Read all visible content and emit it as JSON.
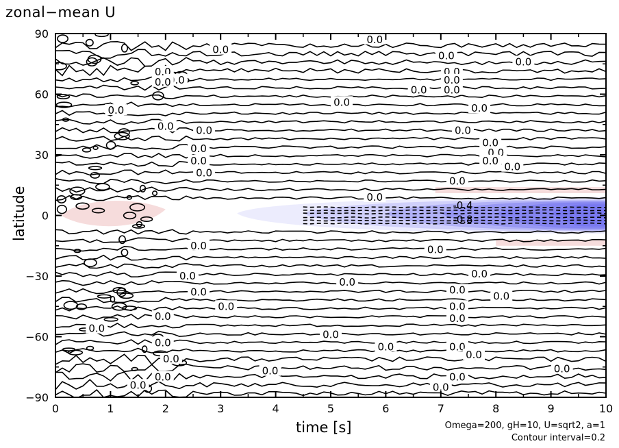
{
  "chart_data": {
    "type": "contour",
    "title": "zonal−mean U",
    "xlabel": "time [s]",
    "ylabel": "latitude",
    "xlim": [
      0,
      10
    ],
    "ylim": [
      -90,
      90
    ],
    "x_ticks": [
      0,
      1,
      2,
      3,
      4,
      5,
      6,
      7,
      8,
      9,
      10
    ],
    "y_ticks": [
      90,
      60,
      30,
      0,
      -30,
      -60,
      -90
    ],
    "y_tick_labels": [
      "90",
      "60",
      "30",
      "0",
      "−30",
      "−60",
      "−90"
    ],
    "contour_interval": 0.2,
    "contour_labels": [
      "0.0",
      "-0.4",
      "-0.8"
    ],
    "features": [
      {
        "kind": "negative_region",
        "label": "-0.8",
        "t_start": 3.3,
        "t_end": 10,
        "lat_center": 0,
        "min_value": -1.2
      },
      {
        "kind": "positive_region",
        "t_start": 0.1,
        "t_end": 2.0,
        "lat_center": 0,
        "max_value": 0.2
      }
    ],
    "grid": false,
    "legend": "none",
    "annotation_lines": [
      "Omega=200, gH=10, U=sqrt2, a=1",
      "Contour interval=0.2"
    ],
    "colors": {
      "positive": "#f6dcdc",
      "negative": "#6e6ef0",
      "line": "#000000"
    }
  }
}
